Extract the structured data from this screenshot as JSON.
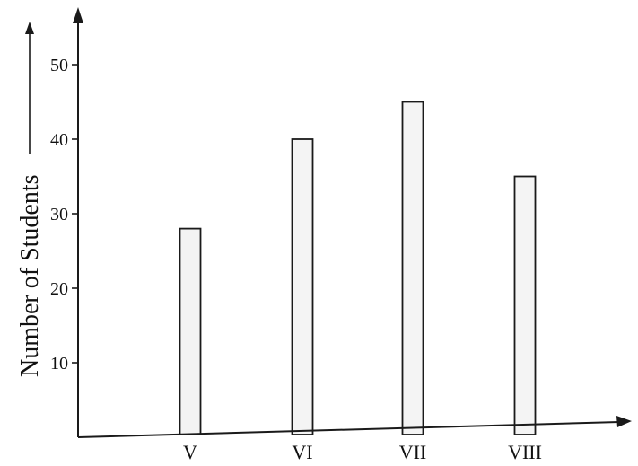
{
  "chart_data": {
    "type": "bar",
    "title": "",
    "xlabel": "",
    "ylabel": "Number of Students",
    "categories": [
      "V",
      "VI",
      "VII",
      "VIII"
    ],
    "values": [
      28,
      40,
      45,
      35
    ],
    "yticks": [
      10,
      20,
      30,
      40,
      50
    ],
    "ylim": [
      0,
      55
    ],
    "grid": false,
    "colors": {
      "bar_fill": "#f4f4f4",
      "stroke": "#1a1a1a"
    }
  }
}
